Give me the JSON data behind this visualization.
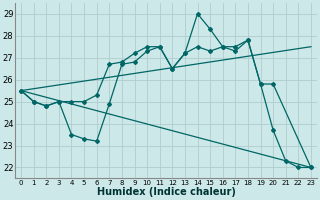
{
  "bg_color": "#cde8e8",
  "grid_color": "#b0cccc",
  "line_color": "#006666",
  "xlabel": "Humidex (Indice chaleur)",
  "ylim": [
    21.5,
    29.5
  ],
  "xlim": [
    -0.5,
    23.5
  ],
  "yticks": [
    22,
    23,
    24,
    25,
    26,
    27,
    28,
    29
  ],
  "xticks": [
    0,
    1,
    2,
    3,
    4,
    5,
    6,
    7,
    8,
    9,
    10,
    11,
    12,
    13,
    14,
    15,
    16,
    17,
    18,
    19,
    20,
    21,
    22,
    23
  ],
  "series": [
    {
      "x": [
        0,
        1,
        2,
        3,
        4,
        5,
        6,
        7,
        8,
        9,
        10,
        11,
        12,
        13,
        14,
        15,
        16,
        17,
        18,
        19,
        20,
        21,
        22,
        23
      ],
      "y": [
        25.5,
        25.0,
        24.8,
        25.0,
        23.5,
        23.3,
        23.2,
        24.9,
        26.7,
        26.8,
        27.3,
        27.5,
        26.5,
        27.2,
        29.0,
        28.3,
        27.5,
        27.3,
        27.8,
        25.8,
        23.7,
        22.3,
        22.0,
        22.0
      ],
      "has_markers": true
    },
    {
      "x": [
        0,
        1,
        2,
        3,
        4,
        5,
        6,
        7,
        8,
        9,
        10,
        11,
        12,
        13,
        14,
        15,
        16,
        17,
        18,
        19,
        20,
        23
      ],
      "y": [
        25.5,
        25.0,
        24.8,
        25.0,
        25.0,
        25.0,
        25.3,
        26.7,
        26.8,
        27.2,
        27.5,
        27.5,
        26.5,
        27.2,
        27.5,
        27.3,
        27.5,
        27.5,
        27.8,
        25.8,
        25.8,
        22.0
      ],
      "has_markers": true
    },
    {
      "x": [
        0,
        23
      ],
      "y": [
        25.5,
        27.5
      ],
      "has_markers": false
    },
    {
      "x": [
        0,
        23
      ],
      "y": [
        25.5,
        22.0
      ],
      "has_markers": false
    }
  ]
}
